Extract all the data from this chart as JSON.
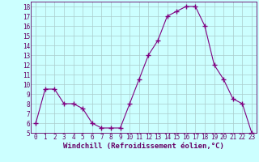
{
  "x": [
    0,
    1,
    2,
    3,
    4,
    5,
    6,
    7,
    8,
    9,
    10,
    11,
    12,
    13,
    14,
    15,
    16,
    17,
    18,
    19,
    20,
    21,
    22,
    23
  ],
  "y": [
    6,
    9.5,
    9.5,
    8,
    8,
    7.5,
    6,
    5.5,
    5.5,
    5.5,
    8,
    10.5,
    13,
    14.5,
    17,
    17.5,
    18,
    18,
    16,
    12,
    10.5,
    8.5,
    8,
    5
  ],
  "line_color": "#800080",
  "marker": "+",
  "marker_size": 4,
  "bg_color": "#ccffff",
  "grid_color": "#aacccc",
  "xlabel": "Windchill (Refroidissement éolien,°C)",
  "xlim": [
    -0.5,
    23.5
  ],
  "ylim": [
    5,
    18.5
  ],
  "yticks": [
    5,
    6,
    7,
    8,
    9,
    10,
    11,
    12,
    13,
    14,
    15,
    16,
    17,
    18
  ],
  "xticks": [
    0,
    1,
    2,
    3,
    4,
    5,
    6,
    7,
    8,
    9,
    10,
    11,
    12,
    13,
    14,
    15,
    16,
    17,
    18,
    19,
    20,
    21,
    22,
    23
  ],
  "tick_fontsize": 5.5,
  "xlabel_fontsize": 6.5
}
